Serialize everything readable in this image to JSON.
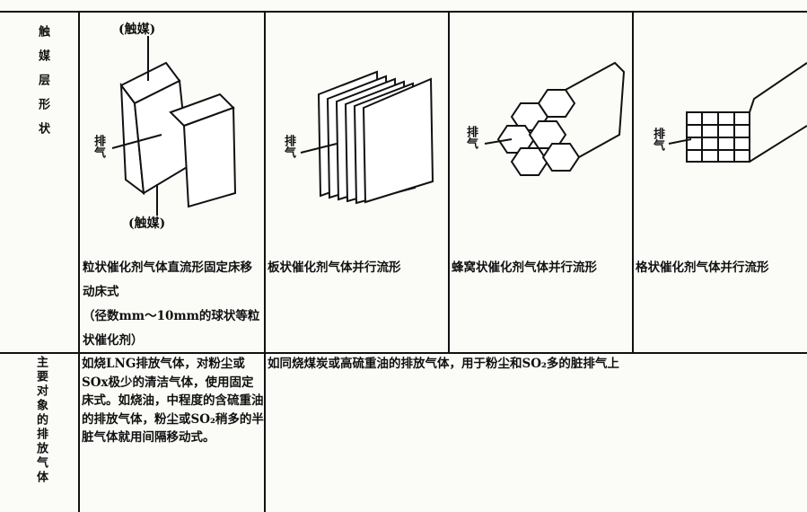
{
  "shape_row": {
    "header": "触媒层形状",
    "cells": [
      {
        "top_label": "(触媒)",
        "exhaust_label": "排气",
        "bottom_label": "(触媒)",
        "caption": [
          "粒状催化剂气体直流形固定床移动床式",
          "（径数mm～10mm的球状等粒状催化剂）"
        ]
      },
      {
        "exhaust_label": "排气",
        "caption": [
          "板状催化剂气体并行流形"
        ]
      },
      {
        "exhaust_label": "排气",
        "caption": [
          "蜂窝状催化剂气体并行流形"
        ]
      },
      {
        "exhaust_label": "排气",
        "caption": [
          "格状催化剂气体并行流形"
        ]
      }
    ]
  },
  "target_row": {
    "header": "主要对象的排放气体",
    "granular": "如烧LNG排放气体，对粉尘或SOx极少的清洁气体，使用固定床式。如烧油，中程度的含硫重油的排放气体，粉尘或SO₂稍多的半脏气体就用间隔移动式。",
    "others": "如同烧煤炭或高硫重油的排放气体，用于粉尘和SO₂多的脏排气上"
  }
}
